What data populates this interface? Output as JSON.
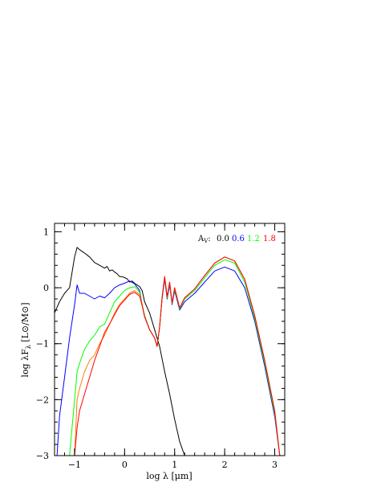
{
  "chart_data": {
    "type": "line",
    "xlabel": "log λ [μm]",
    "ylabel": "log λF",
    "ylabel_sub": "λ",
    "ylabel_units": "[L⊙/M⊙]",
    "xlim": [
      -1.4,
      3.2
    ],
    "ylim": [
      -3,
      1.15
    ],
    "xticks_major": [
      -1,
      0,
      1,
      2,
      3
    ],
    "xticks_minor_step": 0.2,
    "yticks_major": [
      -3,
      -2,
      -1,
      0,
      1
    ],
    "yticks_minor_step": 0.2,
    "legend": {
      "prefix": "A",
      "prefix_sub": "V",
      "separator": ":",
      "placement": "top-right",
      "entries": [
        "0.0",
        "0.6",
        "1.2",
        "1.8"
      ]
    },
    "series": [
      {
        "color": "#000000",
        "x": [
          -1.4,
          -1.3,
          -1.2,
          -1.1,
          -1.0,
          -0.95,
          -0.9,
          -0.8,
          -0.7,
          -0.6,
          -0.5,
          -0.4,
          -0.35,
          -0.3,
          -0.25,
          -0.2,
          -0.15,
          -0.1,
          -0.05,
          0.0,
          0.05,
          0.1,
          0.15,
          0.2,
          0.3,
          0.35,
          0.4,
          0.5,
          0.6,
          0.7,
          0.8,
          0.9,
          1.0,
          1.1,
          1.2
        ],
        "y": [
          -0.45,
          -0.25,
          -0.1,
          0.0,
          0.55,
          0.72,
          0.68,
          0.62,
          0.55,
          0.45,
          0.4,
          0.35,
          0.38,
          0.3,
          0.32,
          0.28,
          0.25,
          0.2,
          0.2,
          0.18,
          0.16,
          0.1,
          0.12,
          0.08,
          0.02,
          -0.05,
          -0.25,
          -0.45,
          -0.75,
          -1.05,
          -1.5,
          -1.9,
          -2.35,
          -2.75,
          -3.0
        ]
      },
      {
        "color": "#0000ff",
        "x": [
          -1.35,
          -1.3,
          -1.2,
          -1.1,
          -1.0,
          -0.95,
          -0.9,
          -0.8,
          -0.7,
          -0.6,
          -0.5,
          -0.4,
          -0.3,
          -0.2,
          -0.1,
          0.0,
          0.1,
          0.2,
          0.3,
          0.35,
          0.4,
          0.5,
          0.6,
          0.65,
          0.7,
          0.75,
          0.8,
          0.85,
          0.9,
          0.95,
          1.0,
          1.1,
          1.2,
          1.4,
          1.6,
          1.8,
          2.0,
          2.2,
          2.4,
          2.6,
          2.8,
          3.0,
          3.1
        ],
        "y": [
          -3.0,
          -2.3,
          -1.6,
          -0.9,
          -0.3,
          0.05,
          -0.1,
          -0.1,
          -0.15,
          -0.2,
          -0.15,
          -0.18,
          -0.1,
          0.0,
          0.05,
          0.08,
          0.12,
          0.07,
          -0.05,
          -0.3,
          -0.5,
          -0.75,
          -0.9,
          -1.05,
          -0.7,
          -0.2,
          0.15,
          -0.2,
          0.05,
          -0.3,
          -0.05,
          -0.4,
          -0.25,
          -0.1,
          0.1,
          0.3,
          0.37,
          0.3,
          0.0,
          -0.6,
          -1.4,
          -2.3,
          -3.0
        ]
      },
      {
        "color": "#00ff00",
        "x": [
          -1.1,
          -1.0,
          -0.95,
          -0.9,
          -0.8,
          -0.7,
          -0.6,
          -0.5,
          -0.4,
          -0.3,
          -0.2,
          -0.1,
          0.0,
          0.1,
          0.2,
          0.3,
          0.35,
          0.4,
          0.5,
          0.6,
          0.65,
          0.7,
          0.75,
          0.8,
          0.85,
          0.9,
          0.95,
          1.0,
          1.1,
          1.2,
          1.4,
          1.6,
          1.8,
          2.0,
          2.2,
          2.4,
          2.6,
          2.8,
          3.0,
          3.1
        ],
        "y": [
          -3.0,
          -2.0,
          -1.5,
          -1.35,
          -1.1,
          -0.95,
          -0.85,
          -0.7,
          -0.65,
          -0.45,
          -0.25,
          -0.15,
          -0.05,
          0.0,
          0.02,
          -0.08,
          -0.3,
          -0.5,
          -0.75,
          -0.9,
          -1.05,
          -0.7,
          -0.18,
          0.18,
          -0.18,
          0.08,
          -0.28,
          -0.02,
          -0.38,
          -0.2,
          -0.05,
          0.18,
          0.4,
          0.5,
          0.44,
          0.1,
          -0.55,
          -1.35,
          -2.25,
          -3.0
        ]
      },
      {
        "color": "#ff7f00",
        "x": [
          -1.0,
          -0.95,
          -0.9,
          -0.8,
          -0.7,
          -0.6,
          -0.5,
          -0.4,
          -0.3,
          -0.2,
          -0.1,
          0.0,
          0.1,
          0.2,
          0.3,
          0.35,
          0.4,
          0.5,
          0.6,
          0.65,
          0.7,
          0.75,
          0.8,
          0.85,
          0.9,
          0.95,
          1.0,
          1.1,
          1.2,
          1.4,
          1.6,
          1.8,
          2.0,
          2.2,
          2.4,
          2.6,
          2.8,
          3.0,
          3.1
        ],
        "y": [
          -3.0,
          -2.0,
          -1.8,
          -1.5,
          -1.3,
          -1.2,
          -1.0,
          -0.85,
          -0.65,
          -0.45,
          -0.3,
          -0.2,
          -0.1,
          -0.05,
          -0.12,
          -0.3,
          -0.52,
          -0.75,
          -0.9,
          -1.05,
          -0.7,
          -0.17,
          0.2,
          -0.16,
          0.1,
          -0.27,
          0.0,
          -0.36,
          -0.18,
          -0.02,
          0.22,
          0.44,
          0.55,
          0.48,
          0.15,
          -0.5,
          -1.3,
          -2.2,
          -3.0
        ]
      },
      {
        "color": "#ff0000",
        "x": [
          -1.0,
          -0.95,
          -0.9,
          -0.8,
          -0.7,
          -0.6,
          -0.5,
          -0.4,
          -0.3,
          -0.2,
          -0.1,
          0.0,
          0.1,
          0.2,
          0.3,
          0.35,
          0.4,
          0.5,
          0.6,
          0.65,
          0.7,
          0.75,
          0.8,
          0.85,
          0.9,
          0.95,
          1.0,
          1.1,
          1.2,
          1.4,
          1.6,
          1.8,
          2.0,
          2.2,
          2.4,
          2.6,
          2.8,
          3.0,
          3.1
        ],
        "y": [
          -3.0,
          -2.5,
          -2.2,
          -1.9,
          -1.6,
          -1.3,
          -1.05,
          -0.8,
          -0.65,
          -0.48,
          -0.32,
          -0.22,
          -0.12,
          -0.08,
          -0.15,
          -0.32,
          -0.52,
          -0.75,
          -0.9,
          -1.05,
          -0.7,
          -0.17,
          0.2,
          -0.16,
          0.1,
          -0.27,
          0.0,
          -0.36,
          -0.18,
          -0.02,
          0.22,
          0.44,
          0.55,
          0.48,
          0.15,
          -0.5,
          -1.3,
          -2.2,
          -3.0
        ]
      }
    ],
    "legend_colors": [
      "#000000",
      "#0000ff",
      "#00ff00",
      "#ff0000"
    ]
  }
}
